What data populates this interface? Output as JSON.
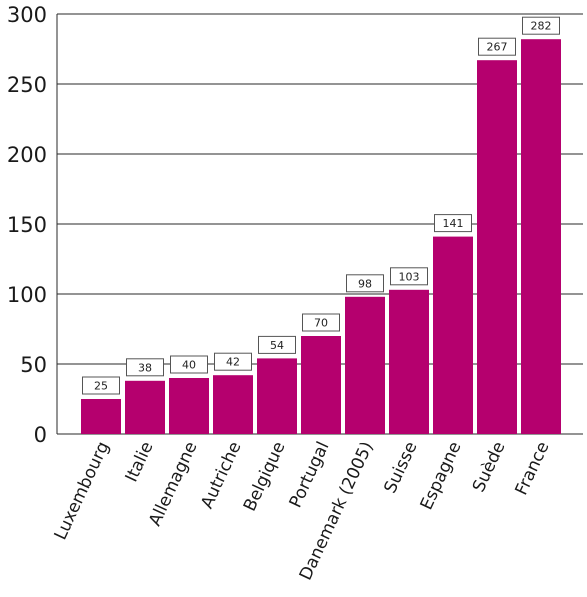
{
  "chart_data": {
    "type": "bar",
    "title": "",
    "xlabel": "",
    "ylabel": "",
    "categories": [
      "Luxembourg",
      "Italie",
      "Allemagne",
      "Autriche",
      "Belgique",
      "Portugal",
      "Danemark (2005)",
      "Suisse",
      "Espagne",
      "Suède",
      "France"
    ],
    "values": [
      25,
      38,
      40,
      42,
      54,
      70,
      98,
      103,
      141,
      267,
      282
    ],
    "ylim": [
      0,
      300
    ],
    "yticks": [
      0,
      50,
      100,
      150,
      200,
      250,
      300
    ],
    "grid": true,
    "colors": {
      "bar": "#b5006e",
      "grid": "#2a2a2a",
      "label_box_border": "#555555"
    }
  }
}
